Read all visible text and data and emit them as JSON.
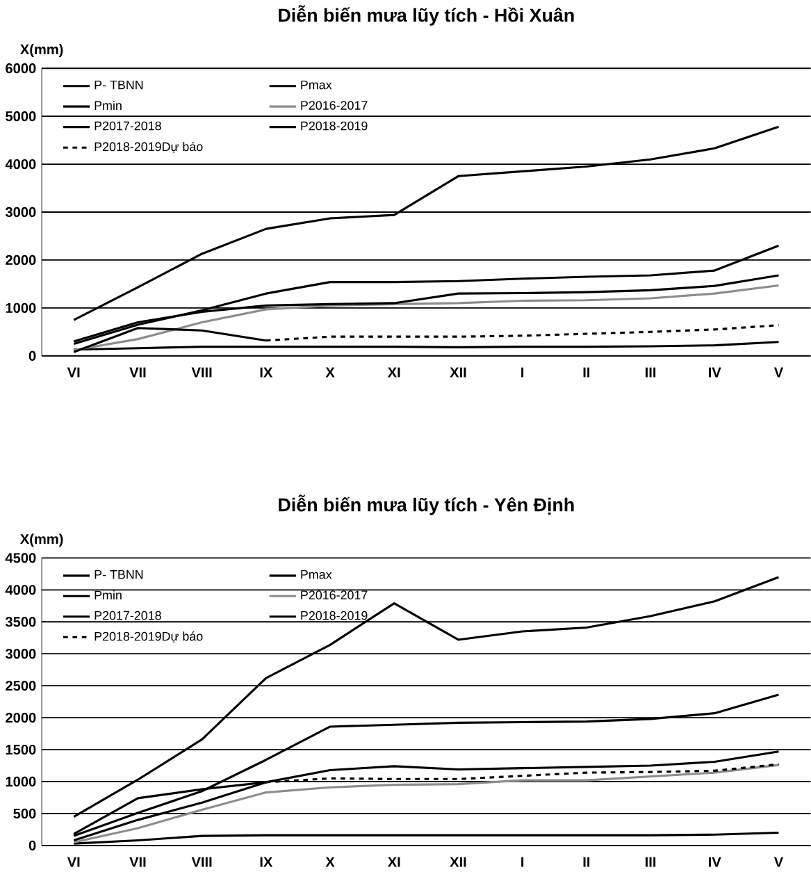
{
  "chart_data": [
    {
      "type": "line",
      "title": "Diễn biến mưa lũy tích - Hồi Xuân",
      "ylabel": "X(mm)",
      "categories": [
        "VI",
        "VII",
        "VIII",
        "IX",
        "X",
        "XI",
        "XII",
        "I",
        "II",
        "III",
        "IV",
        "V"
      ],
      "ylim": [
        0,
        6000
      ],
      "yticks": [
        0,
        1000,
        2000,
        3000,
        4000,
        5000,
        6000
      ],
      "grid": "y",
      "legend": "top left",
      "series": [
        {
          "name": "P- TBNN",
          "color": "#000000",
          "values": [
            250,
            650,
            950,
            1300,
            1540,
            1540,
            1560,
            1610,
            1650,
            1680,
            1780,
            2300
          ]
        },
        {
          "name": "Pmax",
          "color": "#000000",
          "values": [
            750,
            1430,
            2130,
            2650,
            2870,
            2940,
            3750,
            3850,
            3950,
            4100,
            4330,
            4780
          ]
        },
        {
          "name": "Pmin",
          "color": "#000000",
          "values": [
            130,
            160,
            190,
            190,
            190,
            190,
            180,
            190,
            190,
            200,
            220,
            290
          ]
        },
        {
          "name": "P2016-2017",
          "color": "#8c8c8c",
          "values": [
            120,
            350,
            700,
            970,
            1050,
            1080,
            1100,
            1150,
            1160,
            1200,
            1300,
            1470
          ]
        },
        {
          "name": "P2017-2018",
          "color": "#000000",
          "values": [
            300,
            700,
            920,
            1050,
            1080,
            1100,
            1300,
            1310,
            1330,
            1370,
            1460,
            1680
          ]
        },
        {
          "name": "P2018-2019",
          "color": "#000000",
          "values": [
            80,
            580,
            530,
            320,
            null,
            null,
            null,
            null,
            null,
            null,
            null,
            null
          ]
        },
        {
          "name": "P2018-2019Dự báo",
          "color": "#000000",
          "line_style": "dashed",
          "values": [
            null,
            null,
            null,
            320,
            400,
            400,
            400,
            420,
            460,
            500,
            550,
            640
          ]
        }
      ]
    },
    {
      "type": "line",
      "title": "Diễn biến mưa lũy tích - Yên Định",
      "ylabel": "X(mm)",
      "categories": [
        "VI",
        "VII",
        "VIII",
        "IX",
        "X",
        "XI",
        "XII",
        "I",
        "II",
        "III",
        "IV",
        "V"
      ],
      "ylim": [
        0,
        4500
      ],
      "yticks": [
        0,
        500,
        1000,
        1500,
        2000,
        2500,
        3000,
        3500,
        4000,
        4500
      ],
      "grid": "y",
      "legend": "top left",
      "series": [
        {
          "name": "P- TBNN",
          "color": "#000000",
          "values": [
            150,
            510,
            850,
            1340,
            1860,
            1890,
            1920,
            1930,
            1940,
            1980,
            2070,
            2360
          ]
        },
        {
          "name": "Pmax",
          "color": "#000000",
          "values": [
            450,
            1030,
            1660,
            2620,
            3140,
            3790,
            3220,
            3350,
            3410,
            3590,
            3820,
            4200
          ]
        },
        {
          "name": "Pmin",
          "color": "#000000",
          "values": [
            30,
            80,
            150,
            160,
            160,
            160,
            160,
            160,
            160,
            160,
            170,
            200
          ]
        },
        {
          "name": "P2016-2017",
          "color": "#8c8c8c",
          "values": [
            50,
            270,
            560,
            830,
            910,
            950,
            960,
            1020,
            1020,
            1080,
            1140,
            1260
          ]
        },
        {
          "name": "P2017-2018",
          "color": "#000000",
          "values": [
            180,
            740,
            880,
            990,
            1180,
            1240,
            1190,
            1210,
            1230,
            1250,
            1310,
            1470
          ]
        },
        {
          "name": "P2018-2019",
          "color": "#000000",
          "values": [
            80,
            400,
            670,
            990,
            null,
            null,
            null,
            null,
            null,
            null,
            null,
            null
          ]
        },
        {
          "name": "P2018-2019Dự báo",
          "color": "#000000",
          "line_style": "dashed",
          "values": [
            null,
            null,
            null,
            990,
            1050,
            1040,
            1040,
            1090,
            1140,
            1150,
            1170,
            1270
          ]
        }
      ]
    }
  ]
}
